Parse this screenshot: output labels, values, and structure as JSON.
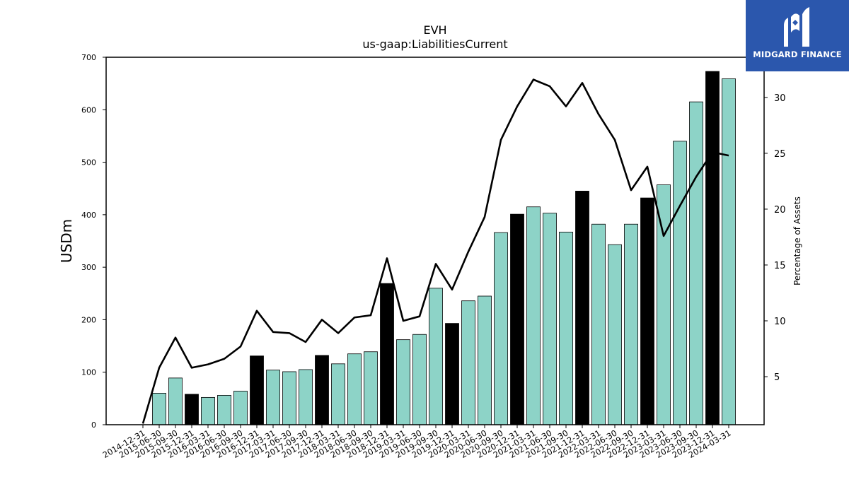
{
  "chart_data": {
    "type": "bar",
    "title": "EVH",
    "subtitle": "us-gaap:LiabilitiesCurrent",
    "ylabel": "USDm",
    "y2label": "Percentage of Assets",
    "ylim": [
      0,
      700
    ],
    "y2lim": [
      0.7,
      33.6
    ],
    "yticks": [
      0,
      100,
      200,
      300,
      400,
      500,
      600,
      700
    ],
    "y2ticks": [
      5,
      10,
      15,
      20,
      25,
      30
    ],
    "categories": [
      "2014-12-31",
      "2015-06-30",
      "2015-09-30",
      "2015-12-31",
      "2016-03-31",
      "2016-06-30",
      "2016-09-30",
      "2016-12-31",
      "2017-03-31",
      "2017-06-30",
      "2017-09-30",
      "2017-12-31",
      "2018-03-31",
      "2018-06-30",
      "2018-09-30",
      "2018-12-31",
      "2019-03-31",
      "2019-06-30",
      "2019-09-30",
      "2019-12-31",
      "2020-03-31",
      "2020-06-30",
      "2020-09-30",
      "2020-12-31",
      "2021-03-31",
      "2021-06-30",
      "2021-09-30",
      "2021-12-31",
      "2022-03-31",
      "2022-06-30",
      "2022-09-30",
      "2022-12-31",
      "2023-03-31",
      "2023-06-30",
      "2023-09-30",
      "2023-12-31",
      "2024-03-31"
    ],
    "bar_values": [
      null,
      60,
      89,
      58,
      52,
      56,
      64,
      131,
      104,
      101,
      105,
      132,
      116,
      135,
      139,
      269,
      162,
      172,
      260,
      193,
      236,
      245,
      366,
      401,
      415,
      403,
      367,
      445,
      382,
      343,
      382,
      432,
      457,
      540,
      615,
      673,
      659
    ],
    "bar_highlight": [
      false,
      false,
      false,
      true,
      false,
      false,
      false,
      true,
      false,
      false,
      false,
      true,
      false,
      false,
      false,
      true,
      false,
      false,
      false,
      true,
      false,
      false,
      false,
      true,
      false,
      false,
      false,
      true,
      false,
      false,
      false,
      true,
      false,
      false,
      false,
      true,
      false
    ],
    "line_values": [
      0.8,
      5.8,
      8.5,
      5.8,
      6.1,
      6.6,
      7.7,
      10.9,
      9.0,
      8.9,
      8.1,
      10.1,
      8.9,
      10.3,
      10.5,
      15.6,
      10.0,
      10.4,
      15.1,
      12.8,
      16.2,
      19.3,
      26.2,
      29.2,
      31.6,
      31.0,
      29.2,
      31.3,
      28.5,
      26.2,
      21.7,
      23.8,
      17.6,
      20.3,
      22.9,
      25.1,
      24.8
    ],
    "colors": {
      "bar": "#8dd3c7",
      "bar_highlight": "#000000",
      "line": "#000000"
    },
    "grid": false,
    "legend": "none"
  },
  "logo": {
    "text": "MIDGARD FINANCE"
  }
}
